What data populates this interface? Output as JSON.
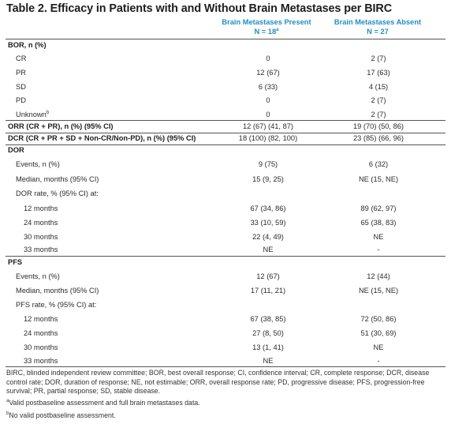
{
  "title": "Table 2. Efficacy in Patients with and Without Brain Metastases per BIRC",
  "columns": [
    {
      "name": "Brain Metastases Present",
      "n": "N = 18",
      "n_sup": "a"
    },
    {
      "name": "Brain Metastases Absent",
      "n": "N = 27",
      "n_sup": ""
    }
  ],
  "rows": [
    {
      "label": "BOR, n (%)",
      "sup": "",
      "v1": "",
      "v2": ""
    },
    {
      "label": "CR",
      "sup": "",
      "v1": "0",
      "v2": "2 (7)"
    },
    {
      "label": "PR",
      "sup": "",
      "v1": "12 (67)",
      "v2": "17 (63)"
    },
    {
      "label": "SD",
      "sup": "",
      "v1": "6 (33)",
      "v2": "4 (15)"
    },
    {
      "label": "PD",
      "sup": "",
      "v1": "0",
      "v2": "2 (7)"
    },
    {
      "label": "Unknown",
      "sup": "b",
      "v1": "0",
      "v2": "2 (7)"
    },
    {
      "label": "ORR (CR + PR), n (%) (95% CI)",
      "sup": "",
      "v1": "12 (67) (41, 87)",
      "v2": "19 (70) (50, 86)"
    },
    {
      "label": "DCR (CR + PR + SD + Non-CR/Non-PD), n (%) (95% CI)",
      "sup": "",
      "v1": "18 (100) (82, 100)",
      "v2": "23 (85) (66, 96)"
    },
    {
      "label": "DOR",
      "sup": "",
      "v1": "",
      "v2": ""
    },
    {
      "label": "Events, n (%)",
      "sup": "",
      "v1": "9 (75)",
      "v2": "6 (32)"
    },
    {
      "label": "Median, months (95% CI)",
      "sup": "",
      "v1": "15 (9, 25)",
      "v2": "NE (15, NE)"
    },
    {
      "label": "DOR rate, % (95% CI) at:",
      "sup": "",
      "v1": "",
      "v2": ""
    },
    {
      "label": "12 months",
      "sup": "",
      "v1": "67 (34, 86)",
      "v2": "89 (62, 97)"
    },
    {
      "label": "24 months",
      "sup": "",
      "v1": "33 (10, 59)",
      "v2": "65 (38, 83)"
    },
    {
      "label": "30 months",
      "sup": "",
      "v1": "22 (4, 49)",
      "v2": "NE"
    },
    {
      "label": "33 months",
      "sup": "",
      "v1": "NE",
      "v2": "-"
    },
    {
      "label": "PFS",
      "sup": "",
      "v1": "",
      "v2": ""
    },
    {
      "label": "Events, n (%)",
      "sup": "",
      "v1": "12 (67)",
      "v2": "12 (44)"
    },
    {
      "label": "Median, months (95% CI)",
      "sup": "",
      "v1": "17 (11, 21)",
      "v2": "NE (15, NE)"
    },
    {
      "label": "PFS rate, % (95% CI) at:",
      "sup": "",
      "v1": "",
      "v2": ""
    },
    {
      "label": "12 months",
      "sup": "",
      "v1": "67 (38, 85)",
      "v2": "72 (50, 86)"
    },
    {
      "label": "24 months",
      "sup": "",
      "v1": "27 (8, 50)",
      "v2": "51 (30, 69)"
    },
    {
      "label": "30 months",
      "sup": "",
      "v1": "13 (1, 41)",
      "v2": "NE"
    },
    {
      "label": "33 months",
      "sup": "",
      "v1": "NE",
      "v2": "-"
    }
  ],
  "footnotes": {
    "abbrev": "BIRC, blinded independent review committee; BOR, best overall response; CI, confidence interval; CR, complete response; DCR, disease control rate; DOR, duration of response; NE, not estimable; ORR, overall response rate; PD, progressive disease; PFS, progression-free survival; PR, partial response; SD, stable disease.",
    "a_mark": "a",
    "a": "Valid postbaseline assessment and full brain metastases data.",
    "b_mark": "b",
    "b": "No valid postbaseline assessment."
  }
}
